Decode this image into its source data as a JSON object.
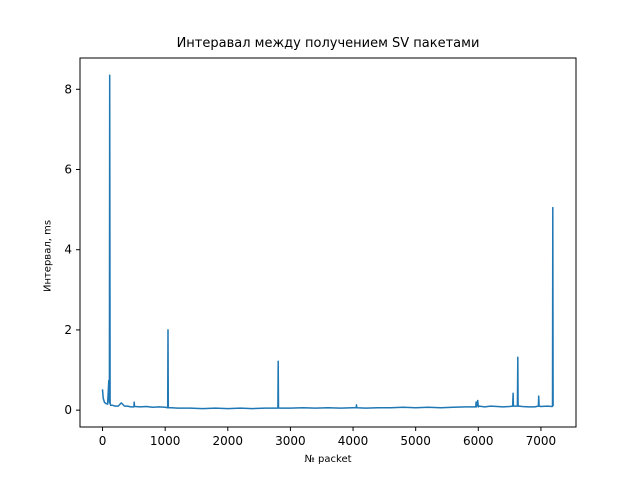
{
  "chart_data": {
    "type": "line",
    "title": "Интеравал между получением SV пакетами",
    "xlabel": "№ packet",
    "ylabel": "Интервал, ms",
    "xlim": [
      -360,
      7560
    ],
    "ylim": [
      -0.42,
      8.78
    ],
    "x_ticks": [
      0,
      1000,
      2000,
      3000,
      4000,
      5000,
      6000,
      7000
    ],
    "y_ticks": [
      0,
      2,
      4,
      6,
      8
    ],
    "grid": false,
    "series": [
      {
        "color": "#1f77b4",
        "x": [
          0,
          10,
          20,
          30,
          40,
          60,
          80,
          100,
          110,
          115,
          120,
          125,
          130,
          160,
          200,
          250,
          300,
          350,
          400,
          450,
          500,
          505,
          510,
          520,
          600,
          700,
          800,
          900,
          1000,
          1040,
          1045,
          1050,
          1060,
          1100,
          1200,
          1400,
          1600,
          1800,
          2000,
          2200,
          2400,
          2600,
          2800,
          2805,
          2810,
          2820,
          3000,
          3200,
          3400,
          3600,
          3800,
          4000,
          4050,
          4055,
          4060,
          4200,
          4400,
          4600,
          4800,
          5000,
          5200,
          5400,
          5600,
          5800,
          5960,
          5965,
          5970,
          5990,
          6000,
          6010,
          6100,
          6200,
          6300,
          6400,
          6500,
          6550,
          6555,
          6560,
          6600,
          6625,
          6630,
          6635,
          6650,
          6700,
          6800,
          6900,
          6960,
          6965,
          6970,
          7000,
          7100,
          7180,
          7185,
          7190,
          7195
        ],
        "y": [
          0.52,
          0.3,
          0.25,
          0.2,
          0.18,
          0.16,
          0.15,
          0.74,
          0.18,
          8.35,
          0.2,
          0.14,
          0.12,
          0.12,
          0.1,
          0.1,
          0.18,
          0.1,
          0.1,
          0.08,
          0.08,
          0.2,
          0.1,
          0.09,
          0.08,
          0.09,
          0.07,
          0.08,
          0.07,
          0.06,
          2.0,
          0.07,
          0.06,
          0.06,
          0.05,
          0.05,
          0.04,
          0.05,
          0.04,
          0.05,
          0.04,
          0.05,
          0.05,
          1.22,
          0.06,
          0.05,
          0.05,
          0.06,
          0.05,
          0.06,
          0.05,
          0.06,
          0.06,
          0.13,
          0.06,
          0.05,
          0.06,
          0.06,
          0.07,
          0.06,
          0.07,
          0.06,
          0.07,
          0.08,
          0.08,
          0.2,
          0.08,
          0.24,
          0.08,
          0.1,
          0.08,
          0.1,
          0.09,
          0.08,
          0.09,
          0.1,
          0.42,
          0.1,
          0.1,
          0.1,
          1.32,
          0.1,
          0.1,
          0.09,
          0.08,
          0.08,
          0.1,
          0.35,
          0.1,
          0.09,
          0.1,
          0.09,
          0.1,
          5.05,
          0.1
        ]
      }
    ]
  }
}
